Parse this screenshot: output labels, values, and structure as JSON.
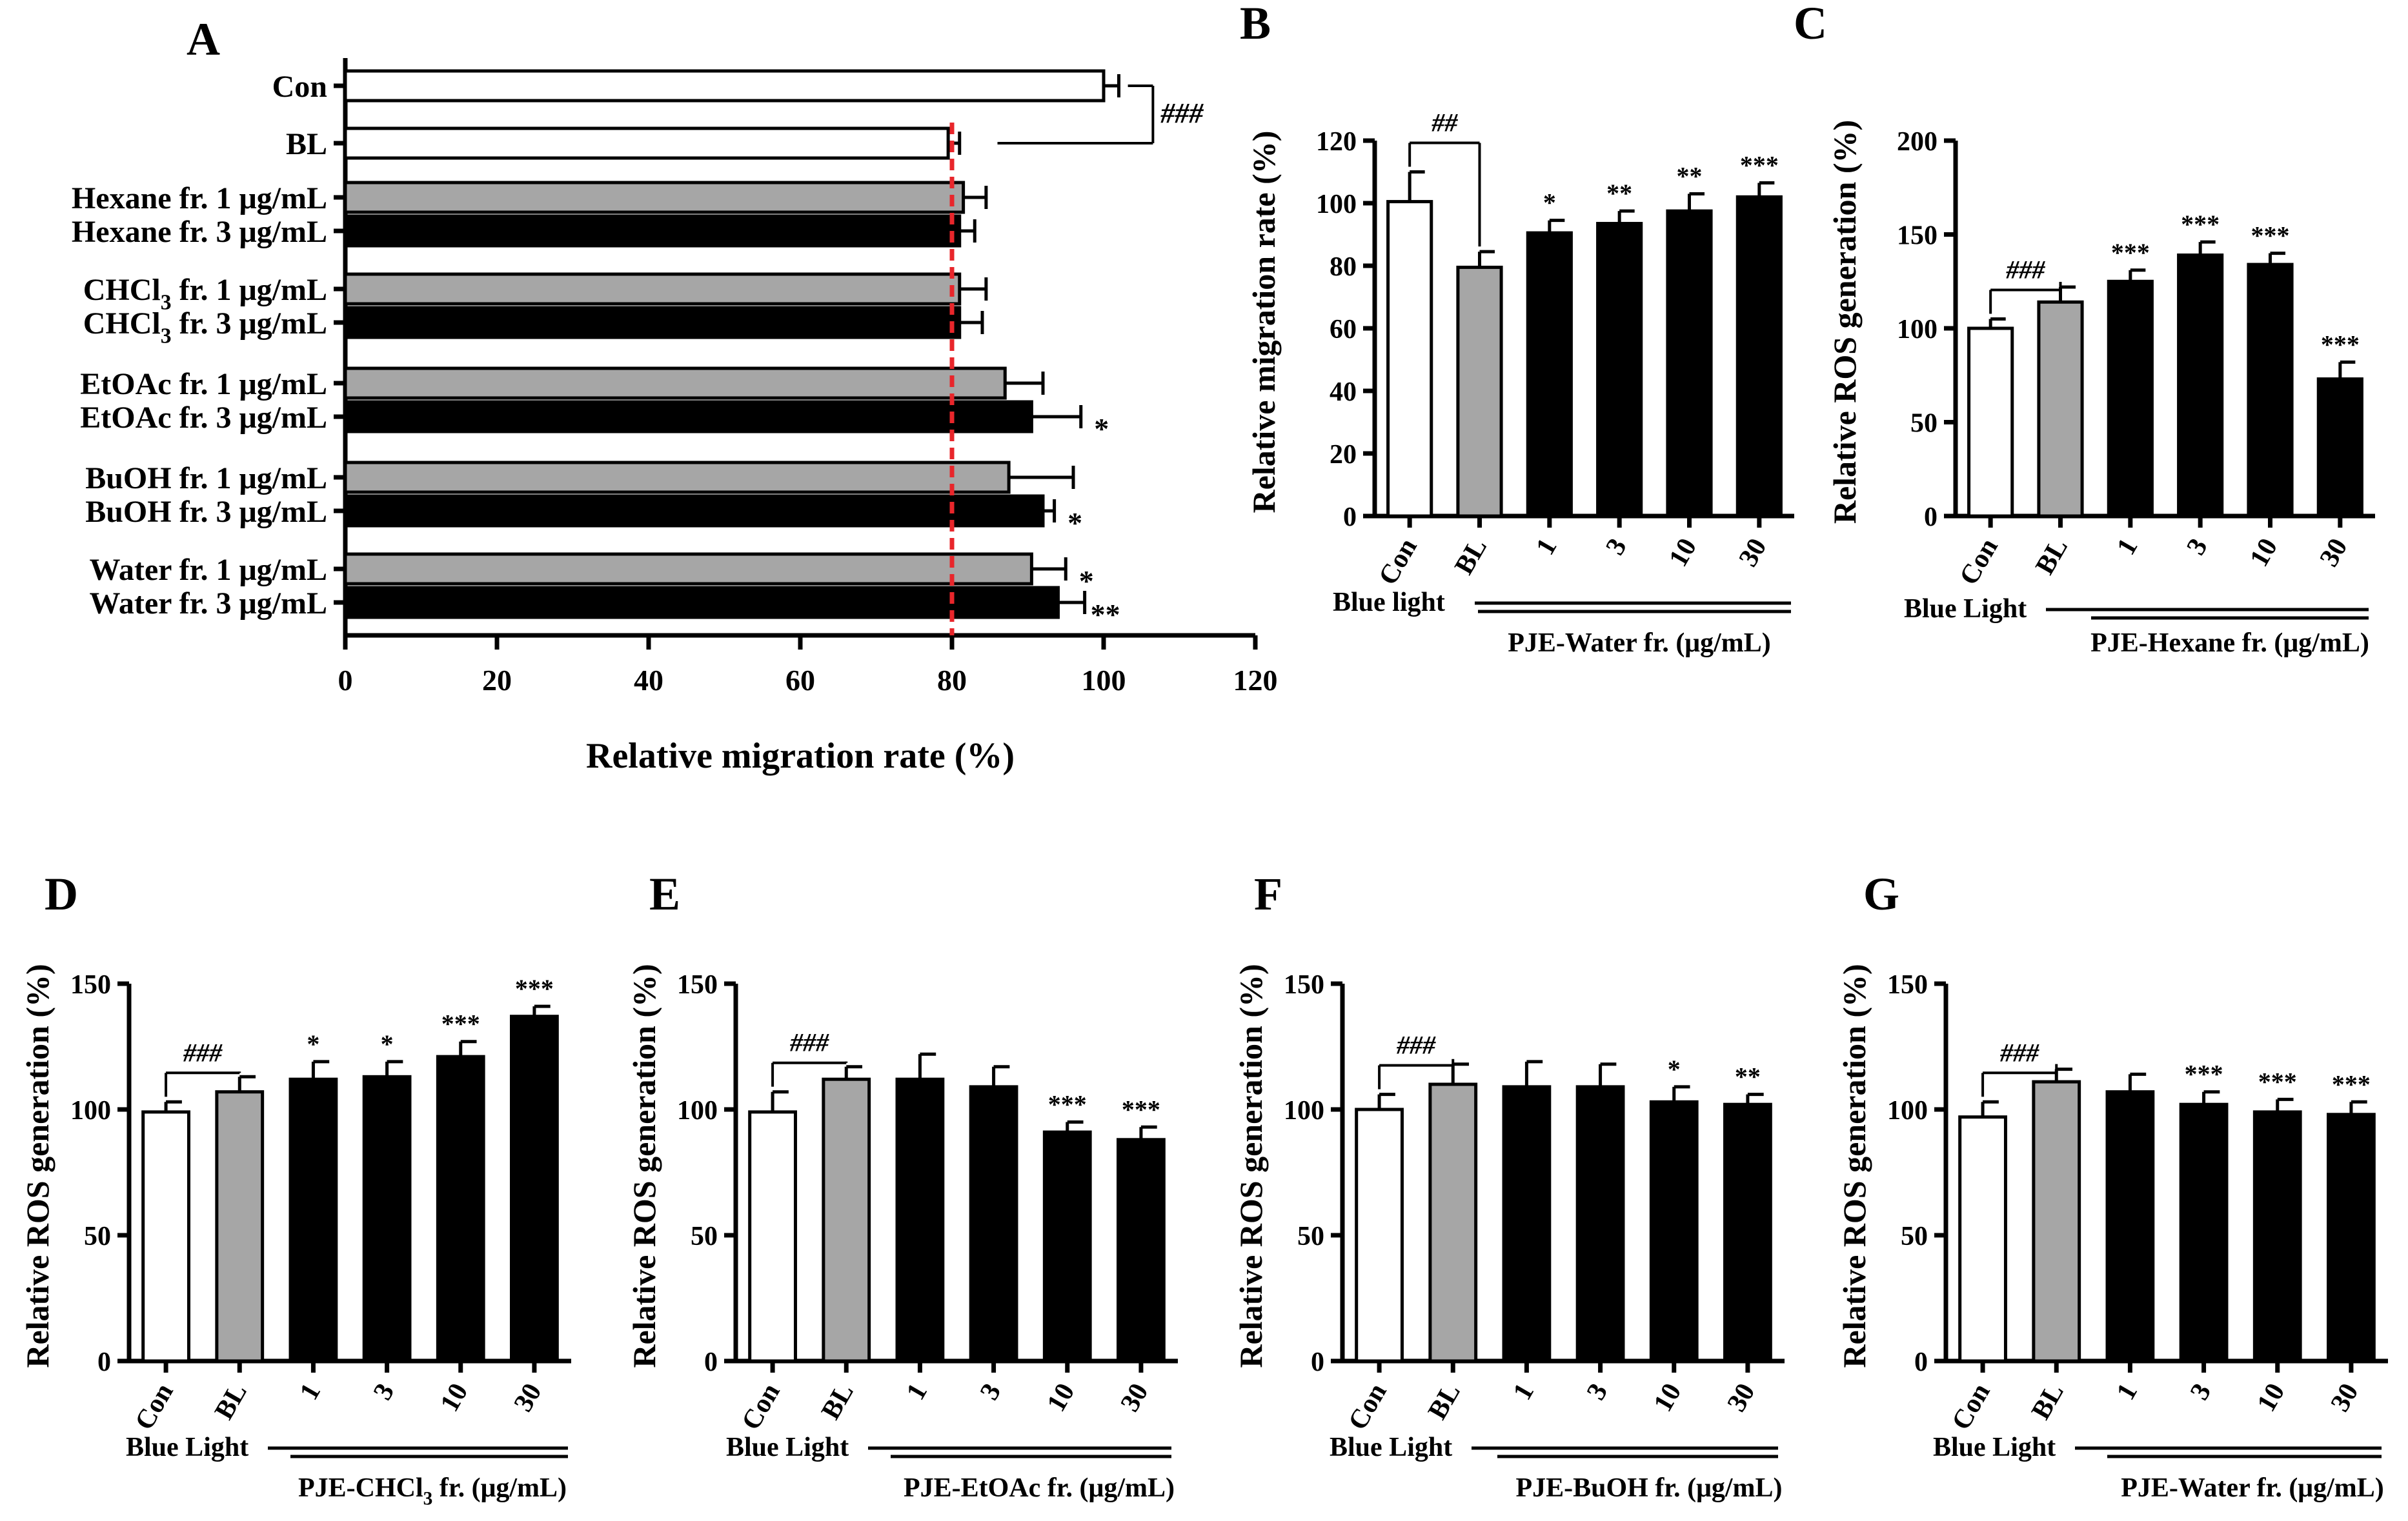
{
  "chart_data": [
    {
      "panel": "A",
      "type": "bar",
      "orientation": "horizontal",
      "xlabel": "Relative migration rate (%)",
      "xlim": [
        0,
        120
      ],
      "xticks": [
        "0",
        "20",
        "40",
        "60",
        "80",
        "100",
        "120"
      ],
      "reference_line": 80,
      "reference_color": "#e8262b",
      "colors": {
        "control": "#ffffff",
        "bl": "#ffffff",
        "low": "#a6a6a6",
        "high": "#000000"
      },
      "bracket_label": "###",
      "categories": [
        {
          "pre": "Con",
          "sub": "",
          "post": "",
          "value": 100,
          "err": 2,
          "fill": "control",
          "sig": ""
        },
        {
          "pre": "BL",
          "sub": "",
          "post": "",
          "value": 79.5,
          "err": 1.5,
          "fill": "bl",
          "sig": ""
        },
        {
          "pre": "Hexane fr. 1 μg/mL",
          "sub": "",
          "post": "",
          "value": 81.5,
          "err": 3,
          "fill": "low",
          "sig": ""
        },
        {
          "pre": "Hexane fr. 3 μg/mL",
          "sub": "",
          "post": "",
          "value": 81,
          "err": 2,
          "fill": "high",
          "sig": ""
        },
        {
          "pre": "CHCl",
          "sub": "3",
          "post": "  fr. 1 μg/mL",
          "value": 81,
          "err": 3.5,
          "fill": "low",
          "sig": ""
        },
        {
          "pre": "CHCl",
          "sub": "3",
          "post": "  fr. 3 μg/mL",
          "value": 81,
          "err": 3,
          "fill": "high",
          "sig": ""
        },
        {
          "pre": "EtOAc fr. 1 μg/mL",
          "sub": "",
          "post": "",
          "value": 87,
          "err": 5,
          "fill": "low",
          "sig": ""
        },
        {
          "pre": "EtOAc fr. 3 μg/mL",
          "sub": "",
          "post": "",
          "value": 90.5,
          "err": 6.5,
          "fill": "high",
          "sig": "*"
        },
        {
          "pre": "BuOH fr. 1 μg/mL",
          "sub": "",
          "post": "",
          "value": 87.5,
          "err": 8.5,
          "fill": "low",
          "sig": ""
        },
        {
          "pre": "BuOH fr. 3 μg/mL",
          "sub": "",
          "post": "",
          "value": 92,
          "err": 1.5,
          "fill": "high",
          "sig": "*"
        },
        {
          "pre": "Water fr. 1 μg/mL",
          "sub": "",
          "post": "",
          "value": 90.5,
          "err": 4.5,
          "fill": "low",
          "sig": "*"
        },
        {
          "pre": "Water fr. 3 μg/mL",
          "sub": "",
          "post": "",
          "value": 94,
          "err": 3.5,
          "fill": "high",
          "sig": "**"
        }
      ]
    },
    {
      "panel": "B",
      "type": "bar",
      "ylabel": "Relative migration rate (%)",
      "ylim": [
        0,
        120
      ],
      "yticks": [
        0,
        20,
        40,
        60,
        80,
        100,
        120
      ],
      "categories": [
        "Con",
        "BL",
        "1",
        "3",
        "10",
        "30"
      ],
      "values": [
        100.5,
        79.5,
        90.5,
        93.5,
        97.5,
        102
      ],
      "errors": [
        9.5,
        5,
        4,
        4,
        5.5,
        4.5
      ],
      "fills": [
        "#ffffff",
        "#a6a6a6",
        "#000000",
        "#000000",
        "#000000",
        "#000000"
      ],
      "sig": [
        "",
        "",
        "*",
        "**",
        "**",
        "***"
      ],
      "bracket_label": "##",
      "group_label_1": "Blue light",
      "group_label_2": "PJE-Water fr. (μg/mL)",
      "group_sub": "",
      "group_tail": ""
    },
    {
      "panel": "C",
      "type": "bar",
      "ylabel": "Relative ROS generation (%)",
      "ylim": [
        0,
        200
      ],
      "yticks": [
        0,
        50,
        100,
        150,
        200
      ],
      "categories": [
        "Con",
        "BL",
        "1",
        "3",
        "10",
        "30"
      ],
      "values": [
        100,
        114,
        125,
        139,
        134,
        73
      ],
      "errors": [
        5,
        8,
        6,
        7,
        6,
        9
      ],
      "fills": [
        "#ffffff",
        "#a6a6a6",
        "#000000",
        "#000000",
        "#000000",
        "#000000"
      ],
      "sig": [
        "",
        "",
        "***",
        "***",
        "***",
        "***"
      ],
      "bracket_label": "###",
      "group_label_1": "Blue Light",
      "group_label_2": "PJE-Hexane fr. (μg/mL)",
      "group_sub": "",
      "group_tail": ""
    },
    {
      "panel": "D",
      "type": "bar",
      "ylabel": "Relative ROS generation (%)",
      "ylim": [
        0,
        150
      ],
      "yticks": [
        0,
        50,
        100,
        150
      ],
      "categories": [
        "Con",
        "BL",
        "1",
        "3",
        "10",
        "30"
      ],
      "values": [
        99,
        107,
        112,
        113,
        121,
        137
      ],
      "errors": [
        4,
        6,
        7,
        6,
        6,
        4
      ],
      "fills": [
        "#ffffff",
        "#a6a6a6",
        "#000000",
        "#000000",
        "#000000",
        "#000000"
      ],
      "sig": [
        "",
        "",
        "*",
        "*",
        "***",
        "***"
      ],
      "bracket_label": "###",
      "group_label_1": "Blue Light",
      "group_label_2": "PJE-CHCl",
      "group_sub": "3",
      "group_tail": " fr. (μg/mL)"
    },
    {
      "panel": "E",
      "type": "bar",
      "ylabel": "Relative ROS generation (%)",
      "ylim": [
        0,
        150
      ],
      "yticks": [
        0,
        50,
        100,
        150
      ],
      "categories": [
        "Con",
        "BL",
        "1",
        "3",
        "10",
        "30"
      ],
      "values": [
        99,
        112,
        112,
        109,
        91,
        88
      ],
      "errors": [
        8,
        5,
        10,
        8,
        4,
        5
      ],
      "fills": [
        "#ffffff",
        "#a6a6a6",
        "#000000",
        "#000000",
        "#000000",
        "#000000"
      ],
      "sig": [
        "",
        "",
        "",
        "",
        "***",
        "***"
      ],
      "bracket_label": "###",
      "group_label_1": "Blue Light",
      "group_label_2": "PJE-EtOAc fr. (μg/mL)",
      "group_sub": "",
      "group_tail": ""
    },
    {
      "panel": "F",
      "type": "bar",
      "ylabel": "Relative ROS generation (%)",
      "ylim": [
        0,
        150
      ],
      "yticks": [
        0,
        50,
        100,
        150
      ],
      "categories": [
        "Con",
        "BL",
        "1",
        "3",
        "10",
        "30"
      ],
      "values": [
        100,
        110,
        109,
        109,
        103,
        102
      ],
      "errors": [
        6,
        8,
        10,
        9,
        6,
        4
      ],
      "fills": [
        "#ffffff",
        "#a6a6a6",
        "#000000",
        "#000000",
        "#000000",
        "#000000"
      ],
      "sig": [
        "",
        "",
        "",
        "",
        "*",
        "**"
      ],
      "bracket_label": "###",
      "group_label_1": "Blue Light",
      "group_label_2": "PJE-BuOH fr. (μg/mL)",
      "group_sub": "",
      "group_tail": ""
    },
    {
      "panel": "G",
      "type": "bar",
      "ylabel": "Relative ROS generation (%)",
      "ylim": [
        0,
        150
      ],
      "yticks": [
        0,
        50,
        100,
        150
      ],
      "categories": [
        "Con",
        "BL",
        "1",
        "3",
        "10",
        "30"
      ],
      "values": [
        97,
        111,
        107,
        102,
        99,
        98
      ],
      "errors": [
        6,
        5,
        7,
        5,
        5,
        5
      ],
      "fills": [
        "#ffffff",
        "#a6a6a6",
        "#000000",
        "#000000",
        "#000000",
        "#000000"
      ],
      "sig": [
        "",
        "",
        "",
        "***",
        "***",
        "***"
      ],
      "bracket_label": "###",
      "group_label_1": "Blue Light",
      "group_label_2": "PJE-Water fr. (μg/mL)",
      "group_sub": "",
      "group_tail": ""
    }
  ]
}
